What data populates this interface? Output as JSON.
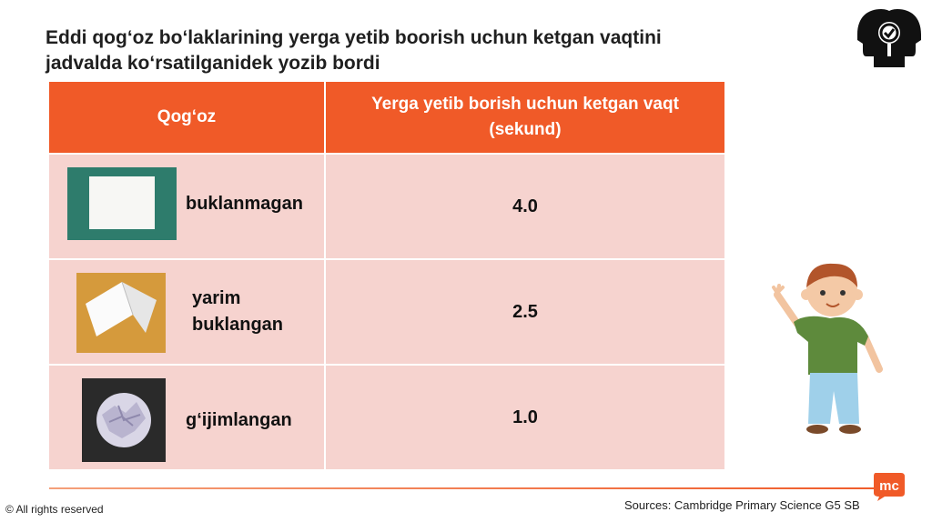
{
  "title": {
    "line1": "Eddi qog‘oz bo‘laklarining yerga yetib boorish uchun ketgan vaqtini",
    "line2": "jadvalda ko‘rsatilganidek yozib bordi"
  },
  "table": {
    "header": {
      "col1": "Qog‘oz",
      "col2_line1": "Yerga yetib borish uchun ketgan vaqt",
      "col2_line2": "(sekund)"
    },
    "rows": [
      {
        "label": "buklanmagan",
        "value": "4.0"
      },
      {
        "label_line1": "yarim",
        "label_line2": "buklangan",
        "value": "2.5"
      },
      {
        "label": "g‘ijimlangan",
        "value": "1.0"
      }
    ]
  },
  "footer": {
    "copyright": "© All rights reserved",
    "sources": "Sources: Cambridge Primary Science G5 SB",
    "brand_text": "mc"
  },
  "colors": {
    "accent": "#f05a28",
    "row_bg": "#f6d3cf"
  }
}
